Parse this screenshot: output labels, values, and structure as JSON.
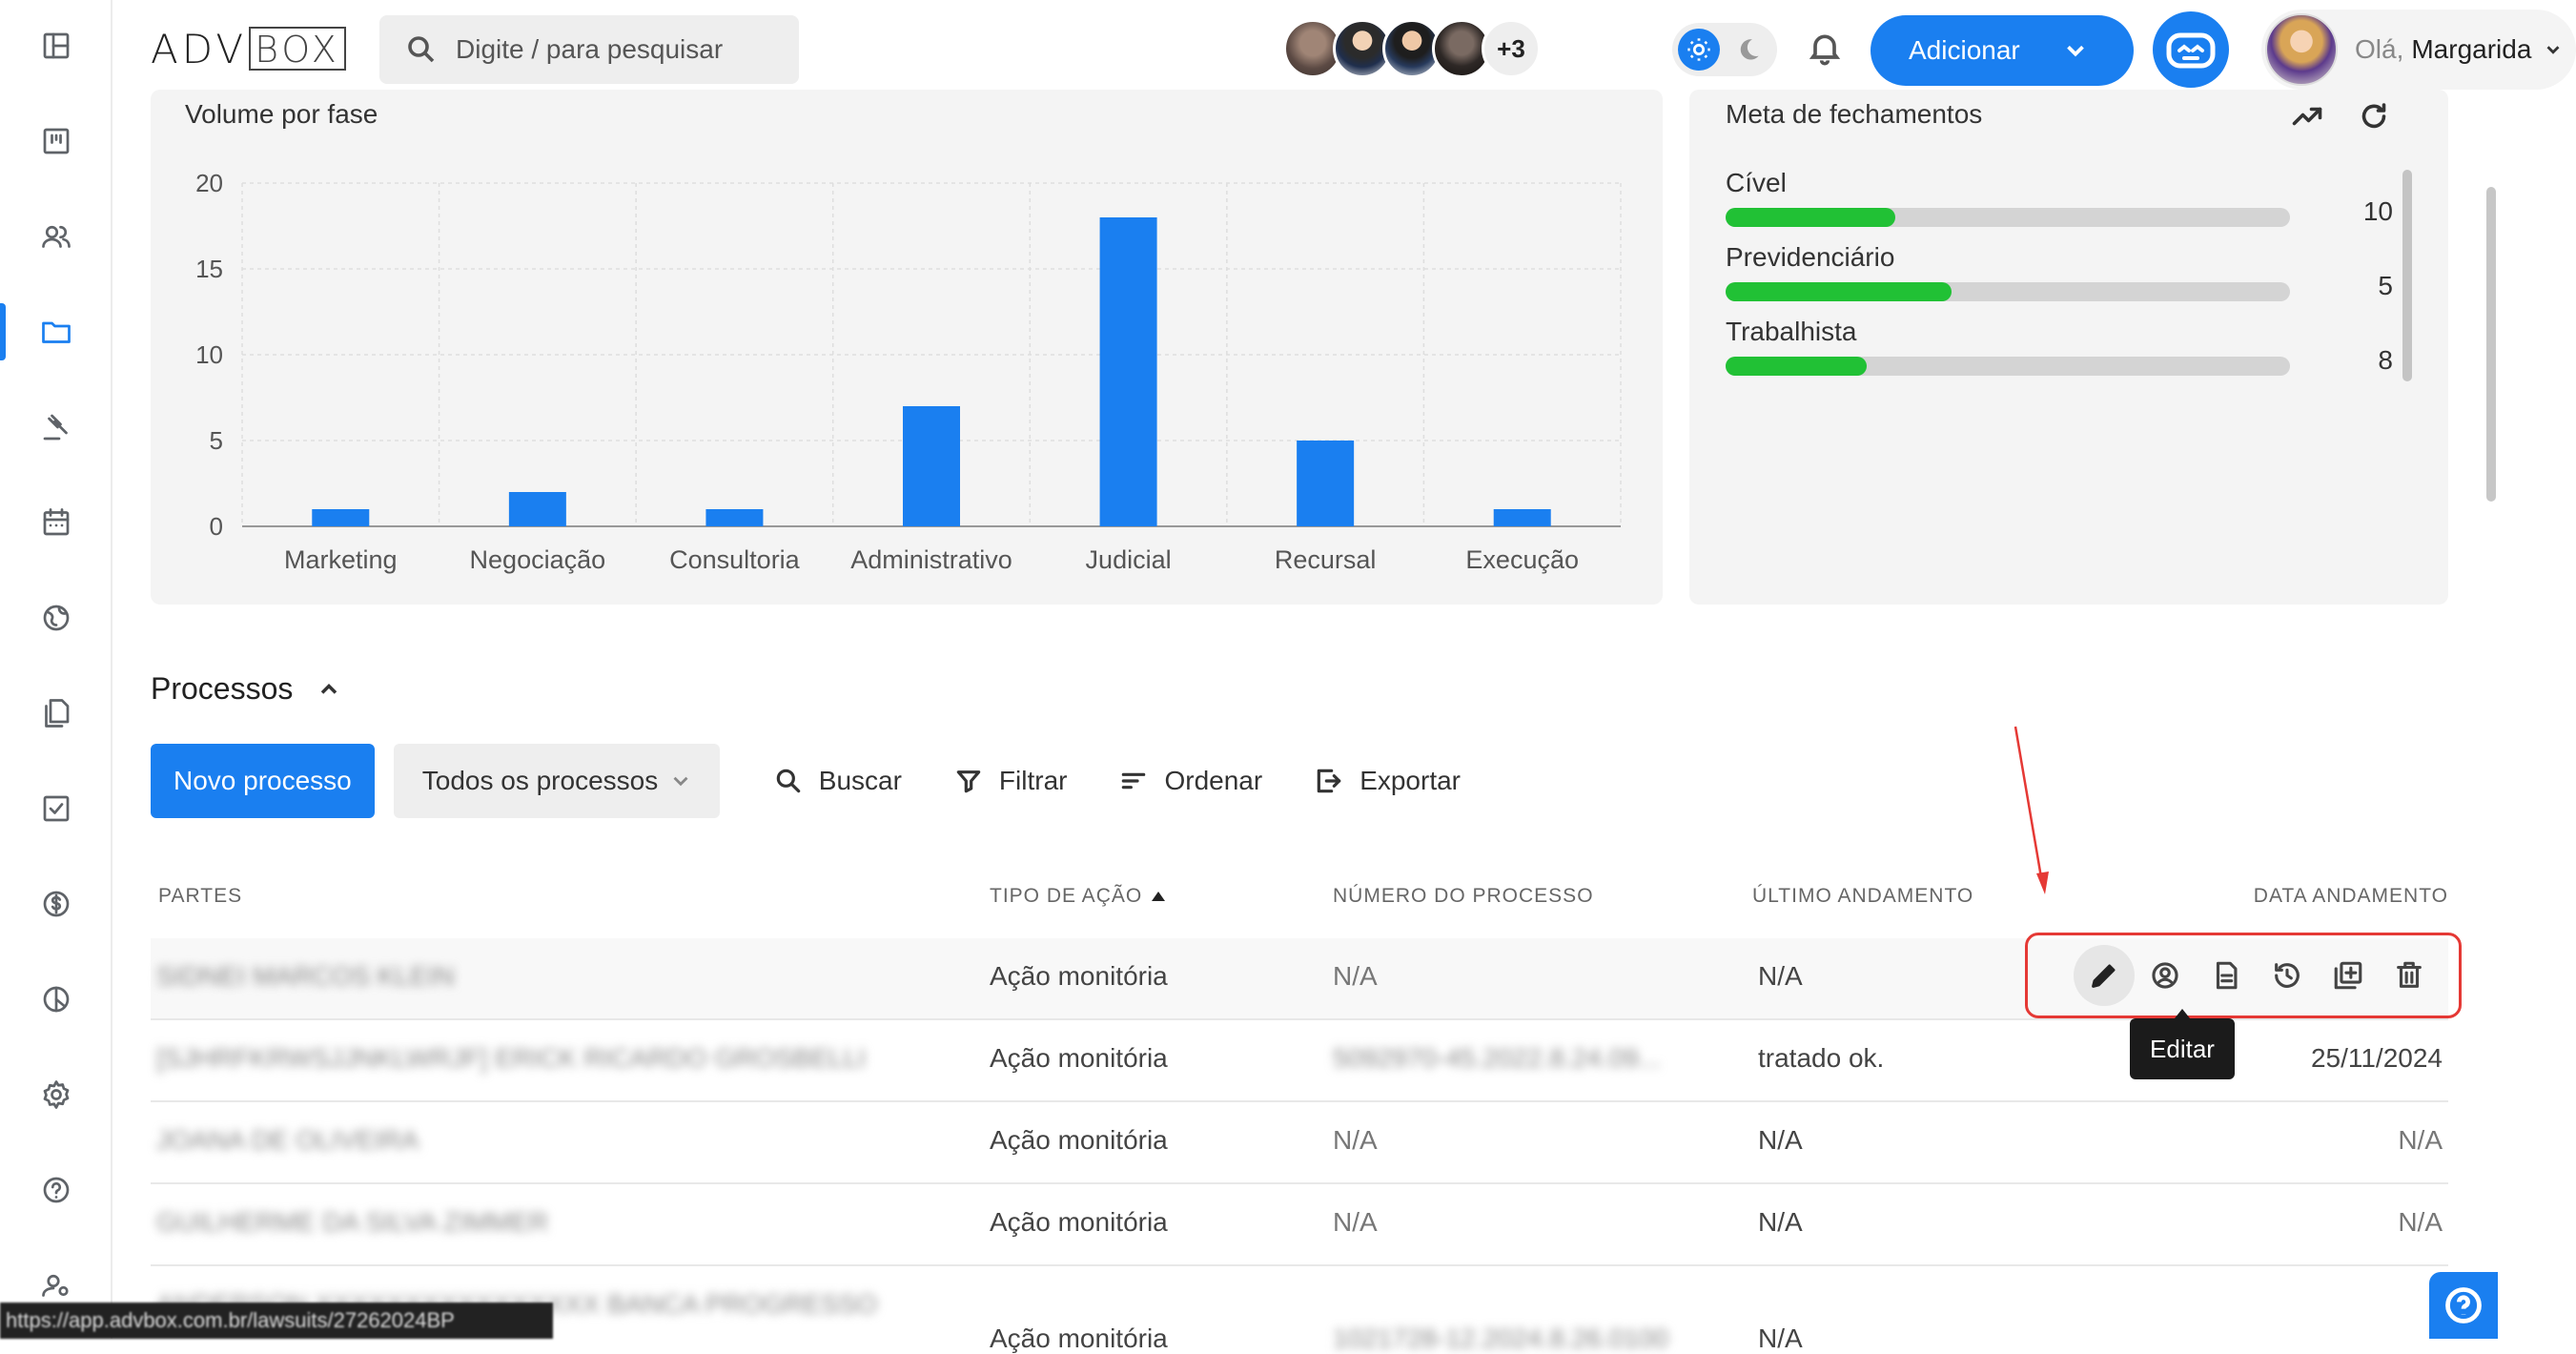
{
  "header": {
    "logo_adv": "ADV",
    "logo_box": "BOX",
    "search_placeholder": "Digite / para pesquisar",
    "more_users": "+3",
    "add_label": "Adicionar",
    "hello": "Olá,",
    "user_name": "Margarida"
  },
  "sidebar": {
    "items": [
      {
        "icon": "dashboard-icon",
        "active": false
      },
      {
        "icon": "kanban-icon",
        "active": false
      },
      {
        "icon": "contacts-icon",
        "active": false
      },
      {
        "icon": "folder-icon",
        "active": true
      },
      {
        "icon": "gavel-icon",
        "active": false
      },
      {
        "icon": "calendar-icon",
        "active": false
      },
      {
        "icon": "globe-icon",
        "active": false
      },
      {
        "icon": "documents-icon",
        "active": false
      },
      {
        "icon": "tasks-icon",
        "active": false
      },
      {
        "icon": "finance-icon",
        "active": false
      },
      {
        "icon": "reports-icon",
        "active": false
      },
      {
        "icon": "settings-icon",
        "active": false
      },
      {
        "icon": "help-icon",
        "active": false
      },
      {
        "icon": "team-icon",
        "active": false
      }
    ]
  },
  "volume_card": {
    "title": "Volume por fase"
  },
  "chart_data": {
    "type": "bar",
    "title": "Volume por fase",
    "categories": [
      "Marketing",
      "Negociação",
      "Consultoria",
      "Administrativo",
      "Judicial",
      "Recursal",
      "Execução"
    ],
    "values": [
      1,
      2,
      1,
      7,
      18,
      5,
      1
    ],
    "ylim": [
      0,
      20
    ],
    "yticks": [
      0,
      5,
      10,
      15,
      20
    ],
    "grid": true,
    "color": "#1a7ff0"
  },
  "meta_card": {
    "title": "Meta de fechamentos",
    "goals": [
      {
        "label": "Cível",
        "value": "10",
        "progress": 0.3
      },
      {
        "label": "Previdenciário",
        "value": "5",
        "progress": 0.4
      },
      {
        "label": "Trabalhista",
        "value": "8",
        "progress": 0.25
      }
    ]
  },
  "processos": {
    "title": "Processos",
    "new_button": "Novo processo",
    "filter_select": "Todos os processos",
    "search": "Buscar",
    "filter": "Filtrar",
    "sort": "Ordenar",
    "export": "Exportar",
    "columns": [
      "PARTES",
      "TIPO DE AÇÃO",
      "NÚMERO DO PROCESSO",
      "ÚLTIMO ANDAMENTO",
      "DATA ANDAMENTO"
    ],
    "rows": [
      {
        "partes": "SIDNEI MARCOS KLEIN",
        "tipo": "Ação monitória",
        "numero": "N/A",
        "andamento": "N/A",
        "data": ""
      },
      {
        "partes": "[SJHRFKRWSJJNKLWRJF] ERICK RICARDO GROSBELLI",
        "tipo": "Ação monitória",
        "numero": "5092970-45.2022.8.24.09...",
        "andamento": "tratado ok.",
        "data": "25/11/2024"
      },
      {
        "partes": "JOANA DE OLIVEIRA",
        "tipo": "Ação monitória",
        "numero": "N/A",
        "andamento": "N/A",
        "data": "N/A"
      },
      {
        "partes": "GUILHERME DA SILVA ZIMMER",
        "tipo": "Ação monitória",
        "numero": "N/A",
        "andamento": "N/A",
        "data": "N/A"
      },
      {
        "partes": "ANDERSON XXXXXXXXXXXXXXXX BANCA PROGRESSO",
        "tipo": "Ação monitória",
        "numero": "1021728-12.2024.8.26.0100",
        "andamento": "N/A",
        "data": ""
      }
    ],
    "tooltip": "Editar"
  },
  "status_url": "https://app.advbox.com.br/lawsuits/27262024BP"
}
